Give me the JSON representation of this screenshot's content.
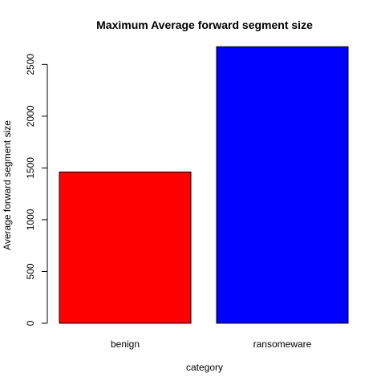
{
  "chart_data": {
    "type": "bar",
    "title": "Maximum Average forward segment size",
    "xlabel": "category",
    "ylabel": "Average forward segment size",
    "categories": [
      "benign",
      "ransomeware"
    ],
    "values": [
      1461,
      2671
    ],
    "colors": [
      "#ff0000",
      "#0000ff"
    ],
    "ylim": [
      0,
      2650
    ],
    "yticks": [
      0,
      500,
      1000,
      1500,
      2000,
      2500
    ],
    "ytick_labels": [
      "0",
      "500",
      "1000",
      "1500",
      "2000",
      "2500"
    ],
    "grid": false,
    "legend": "none"
  }
}
